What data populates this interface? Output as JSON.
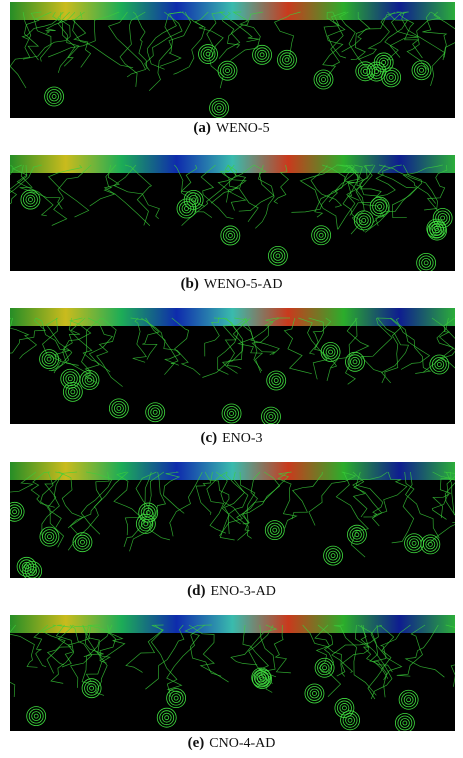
{
  "panels": [
    {
      "label": "(a)",
      "name": "WENO-5"
    },
    {
      "label": "(b)",
      "name": "WENO-5-AD"
    },
    {
      "label": "(c)",
      "name": "ENO-3"
    },
    {
      "label": "(d)",
      "name": "ENO-3-AD"
    },
    {
      "label": "(e)",
      "name": "CNO-4-AD"
    }
  ]
}
